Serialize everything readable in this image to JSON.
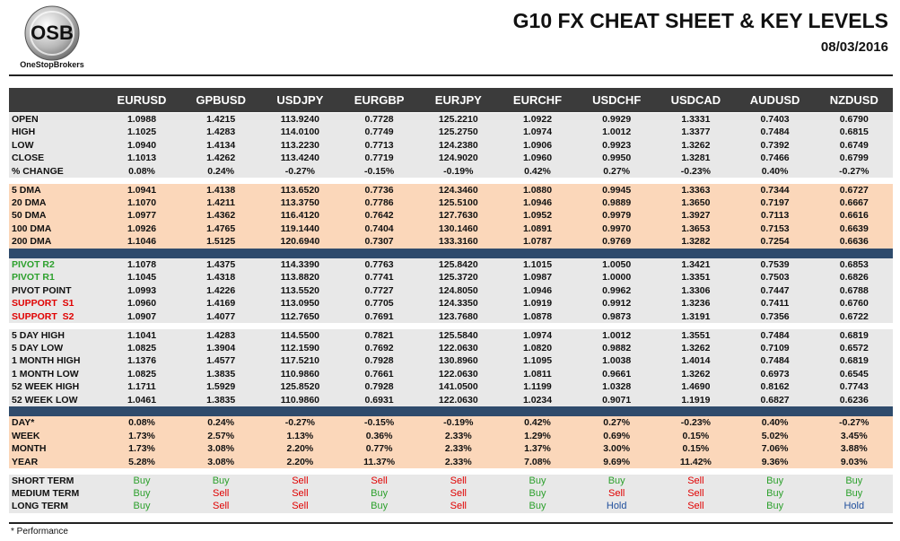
{
  "header": {
    "logo_text": "OSB",
    "logo_caption": "OneStopBrokers",
    "title": "G10 FX CHEAT SHEET & KEY LEVELS",
    "date": "08/03/2016"
  },
  "table": {
    "header_color": "#3b3b3b",
    "columns": [
      "EURUSD",
      "GPBUSD",
      "USDJPY",
      "EURGBP",
      "EURJPY",
      "EURCHF",
      "USDCHF",
      "USDCAD",
      "AUDUSD",
      "NZDUSD"
    ],
    "sections": [
      {
        "background": "#e8e8e8",
        "separator_color": "#ffffff",
        "rows": [
          {
            "label": "OPEN",
            "values": [
              "1.0988",
              "1.4215",
              "113.9240",
              "0.7728",
              "125.2210",
              "1.0922",
              "0.9929",
              "1.3331",
              "0.7403",
              "0.6790"
            ]
          },
          {
            "label": "HIGH",
            "values": [
              "1.1025",
              "1.4283",
              "114.0100",
              "0.7749",
              "125.2750",
              "1.0974",
              "1.0012",
              "1.3377",
              "0.7484",
              "0.6815"
            ]
          },
          {
            "label": "LOW",
            "values": [
              "1.0940",
              "1.4134",
              "113.2230",
              "0.7713",
              "124.2380",
              "1.0906",
              "0.9923",
              "1.3262",
              "0.7392",
              "0.6749"
            ]
          },
          {
            "label": "CLOSE",
            "values": [
              "1.1013",
              "1.4262",
              "113.4240",
              "0.7719",
              "124.9020",
              "1.0960",
              "0.9950",
              "1.3281",
              "0.7466",
              "0.6799"
            ]
          },
          {
            "label": "% CHANGE",
            "values": [
              "0.08%",
              "0.24%",
              "-0.27%",
              "-0.15%",
              "-0.19%",
              "0.42%",
              "0.27%",
              "-0.23%",
              "0.40%",
              "-0.27%"
            ]
          }
        ]
      },
      {
        "background": "#fbd7ba",
        "separator_color": "#2f4b6c",
        "rows": [
          {
            "label": "5 DMA",
            "values": [
              "1.0941",
              "1.4138",
              "113.6520",
              "0.7736",
              "124.3460",
              "1.0880",
              "0.9945",
              "1.3363",
              "0.7344",
              "0.6727"
            ]
          },
          {
            "label": "20 DMA",
            "values": [
              "1.1070",
              "1.4211",
              "113.3750",
              "0.7786",
              "125.5100",
              "1.0946",
              "0.9889",
              "1.3650",
              "0.7197",
              "0.6667"
            ]
          },
          {
            "label": "50 DMA",
            "values": [
              "1.0977",
              "1.4362",
              "116.4120",
              "0.7642",
              "127.7630",
              "1.0952",
              "0.9979",
              "1.3927",
              "0.7113",
              "0.6616"
            ]
          },
          {
            "label": "100 DMA",
            "values": [
              "1.0926",
              "1.4765",
              "119.1440",
              "0.7404",
              "130.1460",
              "1.0891",
              "0.9970",
              "1.3653",
              "0.7153",
              "0.6639"
            ]
          },
          {
            "label": "200 DMA",
            "values": [
              "1.1046",
              "1.5125",
              "120.6940",
              "0.7307",
              "133.3160",
              "1.0787",
              "0.9769",
              "1.3282",
              "0.7254",
              "0.6636"
            ]
          }
        ]
      },
      {
        "background": "#e8e8e8",
        "separator_color": "#ffffff",
        "rows": [
          {
            "label": "PIVOT R2",
            "label_color": "#2ca02c",
            "values": [
              "1.1078",
              "1.4375",
              "114.3390",
              "0.7763",
              "125.8420",
              "1.1015",
              "1.0050",
              "1.3421",
              "0.7539",
              "0.6853"
            ]
          },
          {
            "label": "PIVOT R1",
            "label_color": "#2ca02c",
            "values": [
              "1.1045",
              "1.4318",
              "113.8820",
              "0.7741",
              "125.3720",
              "1.0987",
              "1.0000",
              "1.3351",
              "0.7503",
              "0.6826"
            ]
          },
          {
            "label": "PIVOT POINT",
            "values": [
              "1.0993",
              "1.4226",
              "113.5520",
              "0.7727",
              "124.8050",
              "1.0946",
              "0.9962",
              "1.3306",
              "0.7447",
              "0.6788"
            ]
          },
          {
            "label": "SUPPORT  S1",
            "label_color": "#e00000",
            "values": [
              "1.0960",
              "1.4169",
              "113.0950",
              "0.7705",
              "124.3350",
              "1.0919",
              "0.9912",
              "1.3236",
              "0.7411",
              "0.6760"
            ]
          },
          {
            "label": "SUPPORT  S2",
            "label_color": "#e00000",
            "values": [
              "1.0907",
              "1.4077",
              "112.7650",
              "0.7691",
              "123.7680",
              "1.0878",
              "0.9873",
              "1.3191",
              "0.7356",
              "0.6722"
            ]
          }
        ]
      },
      {
        "background": "#e8e8e8",
        "separator_color": "#2f4b6c",
        "rows": [
          {
            "label": "5 DAY HIGH",
            "values": [
              "1.1041",
              "1.4283",
              "114.5500",
              "0.7821",
              "125.5840",
              "1.0974",
              "1.0012",
              "1.3551",
              "0.7484",
              "0.6819"
            ]
          },
          {
            "label": "5 DAY LOW",
            "values": [
              "1.0825",
              "1.3904",
              "112.1590",
              "0.7692",
              "122.0630",
              "1.0820",
              "0.9882",
              "1.3262",
              "0.7109",
              "0.6572"
            ]
          },
          {
            "label": "1 MONTH HIGH",
            "values": [
              "1.1376",
              "1.4577",
              "117.5210",
              "0.7928",
              "130.8960",
              "1.1095",
              "1.0038",
              "1.4014",
              "0.7484",
              "0.6819"
            ]
          },
          {
            "label": "1 MONTH LOW",
            "values": [
              "1.0825",
              "1.3835",
              "110.9860",
              "0.7661",
              "122.0630",
              "1.0811",
              "0.9661",
              "1.3262",
              "0.6973",
              "0.6545"
            ]
          },
          {
            "label": "52 WEEK HIGH",
            "values": [
              "1.1711",
              "1.5929",
              "125.8520",
              "0.7928",
              "141.0500",
              "1.1199",
              "1.0328",
              "1.4690",
              "0.8162",
              "0.7743"
            ]
          },
          {
            "label": "52 WEEK LOW",
            "values": [
              "1.0461",
              "1.3835",
              "110.9860",
              "0.6931",
              "122.0630",
              "1.0234",
              "0.9071",
              "1.1919",
              "0.6827",
              "0.6236"
            ]
          }
        ]
      },
      {
        "background": "#fbd7ba",
        "separator_color": "#ffffff",
        "rows": [
          {
            "label": "DAY*",
            "values": [
              "0.08%",
              "0.24%",
              "-0.27%",
              "-0.15%",
              "-0.19%",
              "0.42%",
              "0.27%",
              "-0.23%",
              "0.40%",
              "-0.27%"
            ]
          },
          {
            "label": "WEEK",
            "values": [
              "1.73%",
              "2.57%",
              "1.13%",
              "0.36%",
              "2.33%",
              "1.29%",
              "0.69%",
              "0.15%",
              "5.02%",
              "3.45%"
            ]
          },
          {
            "label": "MONTH",
            "values": [
              "1.73%",
              "3.08%",
              "2.20%",
              "0.77%",
              "2.33%",
              "1.37%",
              "3.00%",
              "0.15%",
              "7.06%",
              "3.88%"
            ]
          },
          {
            "label": "YEAR",
            "values": [
              "5.28%",
              "3.08%",
              "2.20%",
              "11.37%",
              "2.33%",
              "7.08%",
              "9.69%",
              "11.42%",
              "9.36%",
              "9.03%"
            ]
          }
        ]
      },
      {
        "background": "#e8e8e8",
        "value_colors": {
          "Buy": "#2ca02c",
          "Sell": "#e00000",
          "Hold": "#1f4e9c"
        },
        "rows": [
          {
            "label": "SHORT TERM",
            "values": [
              "Buy",
              "Buy",
              "Sell",
              "Sell",
              "Sell",
              "Buy",
              "Buy",
              "Sell",
              "Buy",
              "Buy"
            ]
          },
          {
            "label": "MEDIUM TERM",
            "values": [
              "Buy",
              "Sell",
              "Sell",
              "Buy",
              "Sell",
              "Buy",
              "Sell",
              "Sell",
              "Buy",
              "Buy"
            ]
          },
          {
            "label": "LONG TERM",
            "values": [
              "Buy",
              "Sell",
              "Sell",
              "Buy",
              "Sell",
              "Buy",
              "Hold",
              "Sell",
              "Buy",
              "Hold"
            ]
          }
        ]
      }
    ]
  },
  "footnote": "* Performance"
}
